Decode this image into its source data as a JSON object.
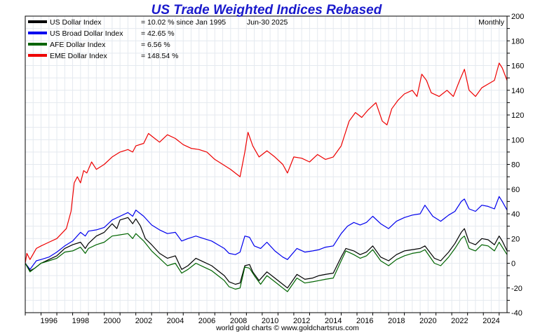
{
  "chart_data": {
    "type": "line",
    "title": "US Trade Weighted Indices Rebased",
    "date_label": "Jun-30  2025",
    "frequency_label": "Monthly",
    "footer": "world gold charts © www.goldchartsrus.com",
    "xlim": [
      1995,
      2025.5
    ],
    "ylim": [
      -40,
      200
    ],
    "y_ticks": [
      -40,
      -20,
      0,
      20,
      40,
      60,
      80,
      100,
      120,
      140,
      160,
      180,
      200
    ],
    "x_ticks": [
      1996,
      1998,
      2000,
      2002,
      2004,
      2006,
      2008,
      2010,
      2012,
      2014,
      2016,
      2018,
      2020,
      2022,
      2024
    ],
    "x_tick_labels": [
      "1996",
      "1998",
      "2000",
      "2002",
      "2004",
      "2006",
      "2008",
      "2010",
      "2012",
      "2014",
      "2016",
      "2018",
      "2020",
      "2022",
      "2024"
    ],
    "series": [
      {
        "name": "US Dollar Index",
        "legend_value": "= 10.02 % since Jan 1995",
        "color": "#000000",
        "points": [
          [
            1995.0,
            0
          ],
          [
            1995.3,
            -6
          ],
          [
            1995.6,
            -4
          ],
          [
            1996.0,
            0
          ],
          [
            1996.5,
            3
          ],
          [
            1997.0,
            6
          ],
          [
            1997.5,
            12
          ],
          [
            1998.0,
            15
          ],
          [
            1998.5,
            17
          ],
          [
            1998.8,
            12
          ],
          [
            1999.0,
            16
          ],
          [
            1999.5,
            22
          ],
          [
            2000.0,
            25
          ],
          [
            2000.5,
            32
          ],
          [
            2000.8,
            28
          ],
          [
            2001.0,
            35
          ],
          [
            2001.5,
            37
          ],
          [
            2001.8,
            32
          ],
          [
            2002.0,
            36
          ],
          [
            2002.3,
            30
          ],
          [
            2002.6,
            20
          ],
          [
            2003.0,
            15
          ],
          [
            2003.5,
            8
          ],
          [
            2004.0,
            4
          ],
          [
            2004.5,
            6
          ],
          [
            2004.9,
            -5
          ],
          [
            2005.3,
            -2
          ],
          [
            2005.8,
            4
          ],
          [
            2006.3,
            1
          ],
          [
            2006.8,
            -2
          ],
          [
            2007.2,
            -6
          ],
          [
            2007.6,
            -10
          ],
          [
            2007.9,
            -15
          ],
          [
            2008.3,
            -17
          ],
          [
            2008.6,
            -16
          ],
          [
            2008.9,
            -2
          ],
          [
            2009.2,
            -1
          ],
          [
            2009.4,
            -7
          ],
          [
            2009.8,
            -14
          ],
          [
            2010.3,
            -7
          ],
          [
            2010.8,
            -12
          ],
          [
            2011.3,
            -17
          ],
          [
            2011.6,
            -20
          ],
          [
            2012.2,
            -9
          ],
          [
            2012.7,
            -13
          ],
          [
            2013.2,
            -12
          ],
          [
            2013.6,
            -10
          ],
          [
            2014.0,
            -9
          ],
          [
            2014.5,
            -8
          ],
          [
            2015.0,
            5
          ],
          [
            2015.3,
            12
          ],
          [
            2015.8,
            10
          ],
          [
            2016.2,
            7
          ],
          [
            2016.6,
            9
          ],
          [
            2017.0,
            14
          ],
          [
            2017.5,
            5
          ],
          [
            2018.0,
            2
          ],
          [
            2018.5,
            7
          ],
          [
            2019.0,
            10
          ],
          [
            2019.5,
            11
          ],
          [
            2020.0,
            12
          ],
          [
            2020.3,
            14
          ],
          [
            2020.9,
            4
          ],
          [
            2021.3,
            2
          ],
          [
            2021.8,
            9
          ],
          [
            2022.2,
            16
          ],
          [
            2022.6,
            25
          ],
          [
            2022.8,
            28
          ],
          [
            2023.1,
            17
          ],
          [
            2023.5,
            15
          ],
          [
            2023.9,
            20
          ],
          [
            2024.3,
            19
          ],
          [
            2024.7,
            15
          ],
          [
            2025.0,
            22
          ],
          [
            2025.2,
            18
          ],
          [
            2025.5,
            10
          ]
        ]
      },
      {
        "name": "US Broad Dollar Index",
        "legend_value": "= 42.65 %",
        "color": "#0000ee",
        "points": [
          [
            1995.0,
            0
          ],
          [
            1995.3,
            -5
          ],
          [
            1995.7,
            2
          ],
          [
            1996.0,
            3
          ],
          [
            1996.5,
            5
          ],
          [
            1997.0,
            9
          ],
          [
            1997.5,
            14
          ],
          [
            1998.0,
            18
          ],
          [
            1998.5,
            25
          ],
          [
            1998.8,
            22
          ],
          [
            1999.0,
            26
          ],
          [
            1999.5,
            27
          ],
          [
            2000.0,
            29
          ],
          [
            2000.5,
            35
          ],
          [
            2001.0,
            38
          ],
          [
            2001.5,
            41
          ],
          [
            2001.8,
            38
          ],
          [
            2002.0,
            43
          ],
          [
            2002.5,
            38
          ],
          [
            2003.0,
            31
          ],
          [
            2003.5,
            27
          ],
          [
            2004.0,
            24
          ],
          [
            2004.5,
            25
          ],
          [
            2004.9,
            18
          ],
          [
            2005.3,
            20
          ],
          [
            2005.8,
            22
          ],
          [
            2006.3,
            20
          ],
          [
            2006.8,
            18
          ],
          [
            2007.2,
            15
          ],
          [
            2007.6,
            12
          ],
          [
            2007.9,
            8
          ],
          [
            2008.3,
            7
          ],
          [
            2008.6,
            9
          ],
          [
            2008.9,
            22
          ],
          [
            2009.2,
            21
          ],
          [
            2009.5,
            14
          ],
          [
            2009.9,
            12
          ],
          [
            2010.3,
            17
          ],
          [
            2010.8,
            10
          ],
          [
            2011.3,
            5
          ],
          [
            2011.6,
            3
          ],
          [
            2012.2,
            12
          ],
          [
            2012.7,
            9
          ],
          [
            2013.2,
            10
          ],
          [
            2013.6,
            11
          ],
          [
            2014.0,
            13
          ],
          [
            2014.5,
            14
          ],
          [
            2015.0,
            24
          ],
          [
            2015.4,
            30
          ],
          [
            2015.8,
            33
          ],
          [
            2016.2,
            31
          ],
          [
            2016.6,
            33
          ],
          [
            2017.0,
            38
          ],
          [
            2017.5,
            32
          ],
          [
            2018.0,
            28
          ],
          [
            2018.5,
            34
          ],
          [
            2019.0,
            37
          ],
          [
            2019.5,
            39
          ],
          [
            2020.0,
            40
          ],
          [
            2020.3,
            47
          ],
          [
            2020.8,
            38
          ],
          [
            2021.3,
            34
          ],
          [
            2021.8,
            39
          ],
          [
            2022.2,
            42
          ],
          [
            2022.6,
            50
          ],
          [
            2022.8,
            52
          ],
          [
            2023.1,
            44
          ],
          [
            2023.5,
            42
          ],
          [
            2023.9,
            47
          ],
          [
            2024.3,
            46
          ],
          [
            2024.7,
            44
          ],
          [
            2025.0,
            54
          ],
          [
            2025.2,
            50
          ],
          [
            2025.5,
            43
          ]
        ]
      },
      {
        "name": "AFE Dollar Index",
        "legend_value": "= 6.56 %",
        "color": "#006400",
        "points": [
          [
            1995.0,
            0
          ],
          [
            1995.3,
            -7
          ],
          [
            1995.7,
            -3
          ],
          [
            1996.0,
            0
          ],
          [
            1996.5,
            2
          ],
          [
            1997.0,
            4
          ],
          [
            1997.5,
            9
          ],
          [
            1998.0,
            10
          ],
          [
            1998.5,
            13
          ],
          [
            1998.8,
            8
          ],
          [
            1999.0,
            12
          ],
          [
            1999.5,
            15
          ],
          [
            2000.0,
            17
          ],
          [
            2000.5,
            22
          ],
          [
            2001.0,
            23
          ],
          [
            2001.5,
            24
          ],
          [
            2001.8,
            20
          ],
          [
            2002.0,
            24
          ],
          [
            2002.5,
            18
          ],
          [
            2003.0,
            10
          ],
          [
            2003.5,
            4
          ],
          [
            2004.0,
            -2
          ],
          [
            2004.5,
            0
          ],
          [
            2004.9,
            -8
          ],
          [
            2005.3,
            -5
          ],
          [
            2005.8,
            0
          ],
          [
            2006.3,
            -3
          ],
          [
            2006.8,
            -6
          ],
          [
            2007.2,
            -10
          ],
          [
            2007.6,
            -14
          ],
          [
            2007.9,
            -19
          ],
          [
            2008.3,
            -21
          ],
          [
            2008.6,
            -20
          ],
          [
            2008.9,
            -3
          ],
          [
            2009.2,
            -4
          ],
          [
            2009.5,
            -10
          ],
          [
            2009.9,
            -17
          ],
          [
            2010.3,
            -10
          ],
          [
            2010.8,
            -15
          ],
          [
            2011.3,
            -20
          ],
          [
            2011.6,
            -23
          ],
          [
            2012.2,
            -12
          ],
          [
            2012.7,
            -16
          ],
          [
            2013.2,
            -15
          ],
          [
            2013.6,
            -14
          ],
          [
            2014.0,
            -13
          ],
          [
            2014.5,
            -12
          ],
          [
            2015.0,
            2
          ],
          [
            2015.3,
            10
          ],
          [
            2015.8,
            7
          ],
          [
            2016.2,
            4
          ],
          [
            2016.6,
            6
          ],
          [
            2017.0,
            11
          ],
          [
            2017.5,
            2
          ],
          [
            2018.0,
            -2
          ],
          [
            2018.5,
            3
          ],
          [
            2019.0,
            6
          ],
          [
            2019.5,
            8
          ],
          [
            2020.0,
            9
          ],
          [
            2020.3,
            11
          ],
          [
            2020.9,
            0
          ],
          [
            2021.3,
            -2
          ],
          [
            2021.8,
            5
          ],
          [
            2022.2,
            12
          ],
          [
            2022.6,
            20
          ],
          [
            2022.8,
            22
          ],
          [
            2023.1,
            12
          ],
          [
            2023.5,
            10
          ],
          [
            2023.9,
            15
          ],
          [
            2024.3,
            14
          ],
          [
            2024.7,
            10
          ],
          [
            2025.0,
            17
          ],
          [
            2025.2,
            13
          ],
          [
            2025.5,
            7
          ]
        ]
      },
      {
        "name": "EME Dollar Index",
        "legend_value": "= 148.54 %",
        "color": "#ee0000",
        "points": [
          [
            1995.0,
            0
          ],
          [
            1995.1,
            8
          ],
          [
            1995.3,
            3
          ],
          [
            1995.7,
            12
          ],
          [
            1996.0,
            14
          ],
          [
            1996.5,
            17
          ],
          [
            1997.0,
            20
          ],
          [
            1997.3,
            24
          ],
          [
            1997.6,
            28
          ],
          [
            1997.9,
            42
          ],
          [
            1998.1,
            65
          ],
          [
            1998.3,
            70
          ],
          [
            1998.5,
            65
          ],
          [
            1998.7,
            75
          ],
          [
            1998.9,
            73
          ],
          [
            1999.2,
            82
          ],
          [
            1999.5,
            76
          ],
          [
            2000.0,
            80
          ],
          [
            2000.5,
            86
          ],
          [
            2001.0,
            90
          ],
          [
            2001.5,
            92
          ],
          [
            2001.8,
            90
          ],
          [
            2002.0,
            95
          ],
          [
            2002.5,
            97
          ],
          [
            2002.8,
            105
          ],
          [
            2003.0,
            103
          ],
          [
            2003.5,
            98
          ],
          [
            2004.0,
            104
          ],
          [
            2004.5,
            101
          ],
          [
            2005.0,
            96
          ],
          [
            2005.5,
            93
          ],
          [
            2006.0,
            92
          ],
          [
            2006.5,
            90
          ],
          [
            2007.0,
            84
          ],
          [
            2007.5,
            80
          ],
          [
            2008.0,
            76
          ],
          [
            2008.4,
            72
          ],
          [
            2008.6,
            70
          ],
          [
            2008.9,
            90
          ],
          [
            2009.1,
            106
          ],
          [
            2009.4,
            95
          ],
          [
            2009.8,
            86
          ],
          [
            2010.3,
            91
          ],
          [
            2010.8,
            86
          ],
          [
            2011.3,
            80
          ],
          [
            2011.6,
            73
          ],
          [
            2012.0,
            86
          ],
          [
            2012.5,
            85
          ],
          [
            2013.0,
            82
          ],
          [
            2013.5,
            88
          ],
          [
            2014.0,
            84
          ],
          [
            2014.5,
            86
          ],
          [
            2015.0,
            95
          ],
          [
            2015.5,
            115
          ],
          [
            2015.9,
            122
          ],
          [
            2016.3,
            118
          ],
          [
            2016.7,
            124
          ],
          [
            2017.2,
            130
          ],
          [
            2017.6,
            115
          ],
          [
            2017.9,
            112
          ],
          [
            2018.2,
            125
          ],
          [
            2018.6,
            132
          ],
          [
            2019.0,
            137
          ],
          [
            2019.5,
            140
          ],
          [
            2019.8,
            135
          ],
          [
            2020.1,
            153
          ],
          [
            2020.4,
            148
          ],
          [
            2020.7,
            138
          ],
          [
            2021.2,
            135
          ],
          [
            2021.7,
            140
          ],
          [
            2022.1,
            135
          ],
          [
            2022.5,
            148
          ],
          [
            2022.8,
            157
          ],
          [
            2023.1,
            140
          ],
          [
            2023.5,
            135
          ],
          [
            2023.9,
            142
          ],
          [
            2024.3,
            145
          ],
          [
            2024.7,
            148
          ],
          [
            2025.0,
            162
          ],
          [
            2025.2,
            158
          ],
          [
            2025.5,
            148
          ]
        ]
      }
    ]
  }
}
